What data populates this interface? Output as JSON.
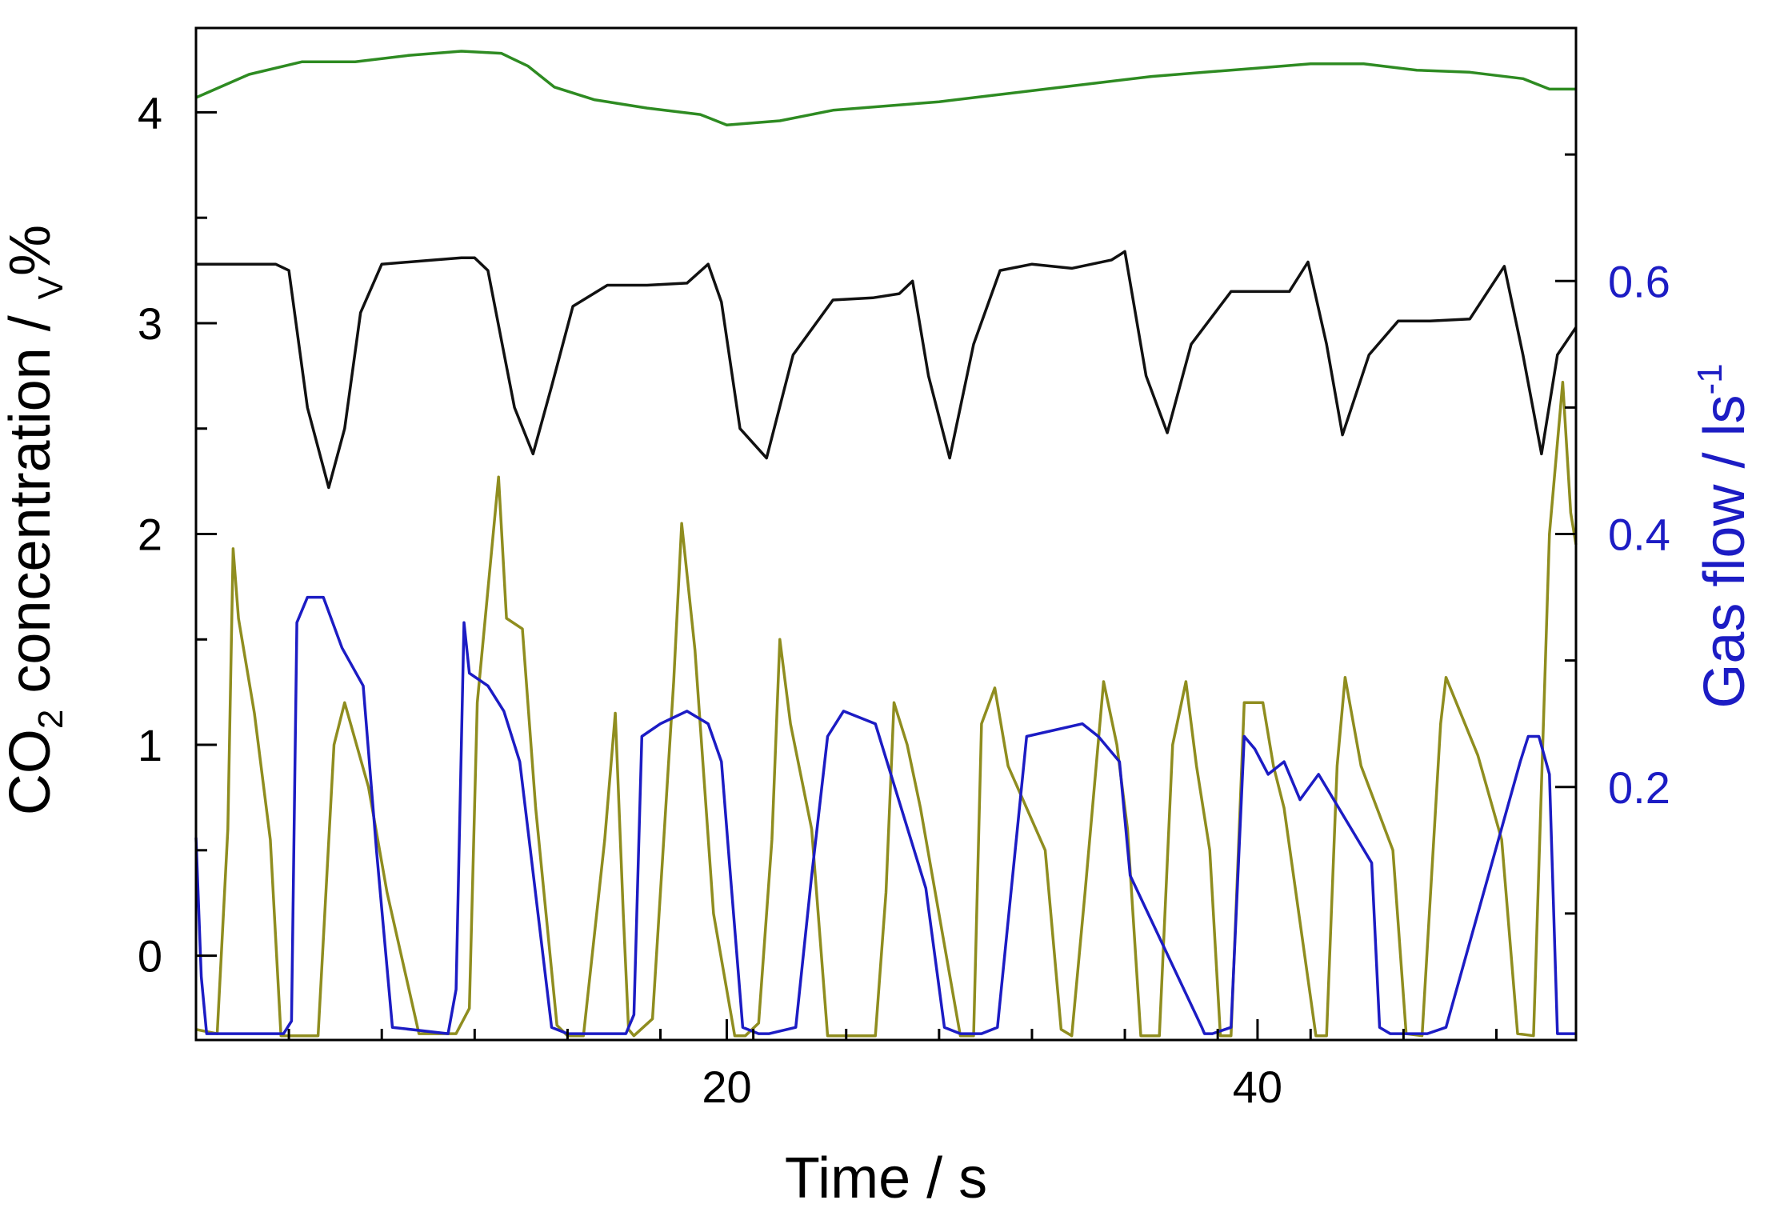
{
  "chart_data": {
    "type": "line",
    "title": "",
    "xlabel": "Time / s",
    "ylabel_left": {
      "main": "CO",
      "sub": "2",
      "rest": " concentration / ",
      "sub2": "V",
      "tail": "%"
    },
    "ylabel_right": {
      "main": "Gas flow / ls",
      "sup": "-1"
    },
    "xlim": [
      0,
      52
    ],
    "x_ticks": [
      20,
      40
    ],
    "x_minor_ticks": [
      0,
      3.5,
      7,
      10.5,
      14,
      17.5,
      21,
      24.5,
      28,
      31.5,
      35,
      38.5,
      42,
      45.5,
      49,
      52
    ],
    "ylim_left": [
      -0.4,
      4.4
    ],
    "y_ticks_left": [
      0,
      1,
      2,
      3,
      4
    ],
    "ylim_right": [
      0.0,
      0.8
    ],
    "y_ticks_right": [
      0.2,
      0.4,
      0.6
    ],
    "colors": {
      "green": "#2e8b22",
      "black": "#111111",
      "olive": "#8f8d1f",
      "blue": "#1c1cc4",
      "axis": "#000000",
      "right_axis_text": "#1c1cc4"
    },
    "series": [
      {
        "name": "green",
        "axis": "left",
        "x": [
          0,
          2,
          4,
          6,
          8,
          10,
          11.5,
          12.5,
          13.5,
          15,
          17,
          19,
          20,
          22,
          24,
          26,
          28,
          30,
          32,
          34,
          36,
          38,
          40,
          42,
          44,
          46,
          48,
          50,
          51,
          52
        ],
        "y": [
          4.07,
          4.18,
          4.24,
          4.24,
          4.27,
          4.29,
          4.28,
          4.22,
          4.12,
          4.06,
          4.02,
          3.99,
          3.94,
          3.96,
          4.01,
          4.03,
          4.05,
          4.08,
          4.11,
          4.14,
          4.17,
          4.19,
          4.21,
          4.23,
          4.23,
          4.2,
          4.19,
          4.16,
          4.11,
          4.11
        ]
      },
      {
        "name": "black",
        "axis": "left",
        "x": [
          0,
          3,
          3.5,
          4.2,
          5,
          5.6,
          6.2,
          7,
          9,
          10,
          10.5,
          11,
          12,
          12.7,
          13.4,
          14.2,
          15.5,
          17,
          18.5,
          19.3,
          19.8,
          20.5,
          21.5,
          22.5,
          24,
          25.5,
          26.5,
          27,
          27.6,
          28.4,
          29.3,
          30.3,
          31.5,
          33,
          34.5,
          35,
          35.8,
          36.6,
          37.5,
          39,
          41.2,
          41.9,
          42.6,
          43.2,
          44.2,
          45.3,
          46.5,
          48,
          49.3,
          50,
          50.7,
          51.3,
          52
        ],
        "y": [
          3.28,
          3.28,
          3.25,
          2.6,
          2.22,
          2.5,
          3.05,
          3.28,
          3.3,
          3.31,
          3.31,
          3.25,
          2.6,
          2.38,
          2.7,
          3.08,
          3.18,
          3.18,
          3.19,
          3.28,
          3.1,
          2.5,
          2.36,
          2.85,
          3.11,
          3.12,
          3.14,
          3.2,
          2.75,
          2.36,
          2.9,
          3.25,
          3.28,
          3.26,
          3.3,
          3.34,
          2.75,
          2.48,
          2.9,
          3.15,
          3.15,
          3.29,
          2.9,
          2.47,
          2.85,
          3.01,
          3.01,
          3.02,
          3.27,
          2.85,
          2.38,
          2.85,
          2.98
        ]
      },
      {
        "name": "olive",
        "axis": "left",
        "x": [
          0,
          0.8,
          1.2,
          1.4,
          1.6,
          2.2,
          2.8,
          3.2,
          3.4,
          4.6,
          5.2,
          5.6,
          6.5,
          7.2,
          8.4,
          9.8,
          10.3,
          10.6,
          11.4,
          11.7,
          12.3,
          12.8,
          13.6,
          14,
          14.6,
          15.4,
          15.8,
          16.1,
          16.3,
          16.5,
          17.2,
          18,
          18.3,
          18.8,
          19.5,
          20.3,
          20.7,
          21.2,
          21.7,
          22,
          22.4,
          23.2,
          23.8,
          25.6,
          26,
          26.3,
          26.8,
          27.3,
          28.8,
          29.3,
          29.6,
          30.1,
          30.6,
          32,
          32.6,
          33,
          33.5,
          34.2,
          34.7,
          35.1,
          35.6,
          36.3,
          36.8,
          37.3,
          37.7,
          38.2,
          38.6,
          39,
          39.5,
          40.2,
          40.6,
          41,
          42.2,
          42.6,
          43,
          43.3,
          43.9,
          45.1,
          45.6,
          46.2,
          46.9,
          47.1,
          48.3,
          49.2,
          49.8,
          50.4,
          51,
          51.5,
          51.8,
          52
        ],
        "y": [
          -0.35,
          -0.37,
          0.6,
          1.93,
          1.6,
          1.15,
          0.55,
          -0.38,
          -0.38,
          -0.38,
          1.0,
          1.2,
          0.8,
          0.3,
          -0.37,
          -0.37,
          -0.25,
          1.2,
          2.27,
          1.6,
          1.55,
          0.7,
          -0.33,
          -0.38,
          -0.38,
          0.55,
          1.15,
          0.2,
          -0.35,
          -0.38,
          -0.3,
          1.3,
          2.05,
          1.45,
          0.2,
          -0.38,
          -0.38,
          -0.32,
          0.55,
          1.5,
          1.1,
          0.6,
          -0.38,
          -0.38,
          0.3,
          1.2,
          1.0,
          0.7,
          -0.38,
          -0.38,
          1.1,
          1.27,
          0.9,
          0.5,
          -0.35,
          -0.38,
          0.3,
          1.3,
          1.0,
          0.6,
          -0.38,
          -0.38,
          1.0,
          1.3,
          0.9,
          0.5,
          -0.38,
          -0.38,
          1.2,
          1.2,
          0.9,
          0.7,
          -0.38,
          -0.38,
          0.9,
          1.32,
          0.9,
          0.5,
          -0.37,
          -0.38,
          1.1,
          1.32,
          0.95,
          0.55,
          -0.37,
          -0.38,
          2.0,
          2.72,
          2.1,
          1.95
        ]
      },
      {
        "name": "blue",
        "axis": "right",
        "x": [
          0,
          0.2,
          0.4,
          0.7,
          3.3,
          3.6,
          3.8,
          4.2,
          4.8,
          5.5,
          6.3,
          6.8,
          7.4,
          9.5,
          9.8,
          10.1,
          10.3,
          11,
          11.6,
          12.2,
          12.6,
          13.4,
          14,
          16.2,
          16.5,
          16.8,
          17.5,
          18.5,
          19.3,
          19.8,
          20.1,
          20.6,
          21.2,
          21.6,
          22.6,
          23.2,
          23.8,
          24.4,
          25.6,
          27.5,
          28.2,
          28.8,
          29.6,
          30.2,
          31.3,
          33.4,
          34,
          34.8,
          35.2,
          37.9,
          38,
          38.3,
          39,
          39.5,
          39.9,
          40.4,
          41,
          41.6,
          42.3,
          44.3,
          44.6,
          45,
          45.8,
          46.4,
          47.1,
          49.9,
          50.2,
          50.6,
          51,
          51.3,
          52
        ],
        "y": [
          0.16,
          0.05,
          0.005,
          0.005,
          0.005,
          0.015,
          0.33,
          0.35,
          0.35,
          0.31,
          0.28,
          0.15,
          0.01,
          0.005,
          0.04,
          0.33,
          0.29,
          0.28,
          0.26,
          0.22,
          0.15,
          0.01,
          0.005,
          0.005,
          0.02,
          0.24,
          0.25,
          0.26,
          0.25,
          0.22,
          0.14,
          0.01,
          0.005,
          0.005,
          0.01,
          0.13,
          0.24,
          0.26,
          0.25,
          0.12,
          0.01,
          0.005,
          0.005,
          0.01,
          0.24,
          0.25,
          0.24,
          0.22,
          0.13,
          0.01,
          0.005,
          0.005,
          0.01,
          0.24,
          0.23,
          0.21,
          0.22,
          0.19,
          0.21,
          0.14,
          0.01,
          0.005,
          0.005,
          0.005,
          0.01,
          0.22,
          0.24,
          0.24,
          0.21,
          0.005,
          0.005
        ]
      }
    ]
  }
}
